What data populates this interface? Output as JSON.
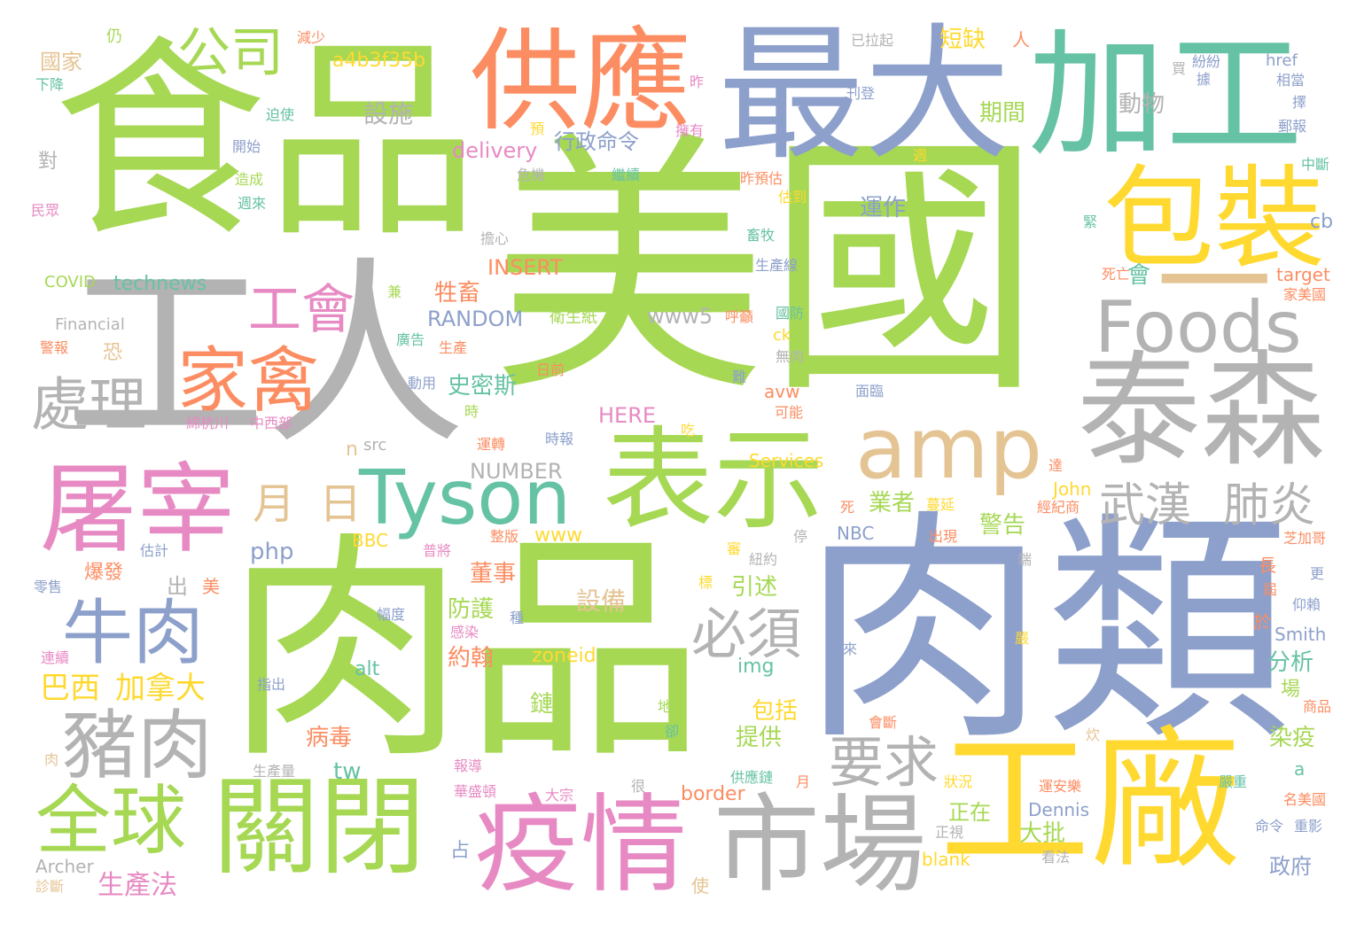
{
  "palette": {
    "green": "#A6D854",
    "grey": "#B3B3B3",
    "blue": "#8DA0CB",
    "orange": "#FC8D62",
    "teal": "#66C2A5",
    "yellow": "#FFD92F",
    "pink": "#E78AC3",
    "tan": "#E5C494"
  },
  "words": [
    {
      "text": "美國",
      "color": "#A6D854"
    },
    {
      "text": "食品",
      "color": "#A6D854"
    },
    {
      "text": "工人",
      "color": "#B3B3B3"
    },
    {
      "text": "肉品",
      "color": "#A6D854"
    },
    {
      "text": "肉類",
      "color": "#8DA0CB"
    },
    {
      "text": "最大",
      "color": "#8DA0CB"
    },
    {
      "text": "加工",
      "color": "#66C2A5"
    },
    {
      "text": "供應",
      "color": "#FC8D62"
    },
    {
      "text": "包裝",
      "color": "#FFD92F"
    },
    {
      "text": "一",
      "color": "#E5C494"
    },
    {
      "text": "Foods",
      "color": "#B3B3B3"
    },
    {
      "text": "泰森",
      "color": "#B3B3B3"
    },
    {
      "text": "amp",
      "color": "#E5C494"
    },
    {
      "text": "表示",
      "color": "#A6D854"
    },
    {
      "text": "Tyson",
      "color": "#66C2A5"
    },
    {
      "text": "屠宰",
      "color": "#E78AC3"
    },
    {
      "text": "工廠",
      "color": "#FFD92F"
    },
    {
      "text": "市場",
      "color": "#B3B3B3"
    },
    {
      "text": "疫情",
      "color": "#E78AC3"
    },
    {
      "text": "關閉",
      "color": "#A6D854"
    },
    {
      "text": "全球",
      "color": "#A6D854"
    },
    {
      "text": "豬肉",
      "color": "#B3B3B3"
    },
    {
      "text": "牛肉",
      "color": "#8DA0CB"
    },
    {
      "text": "家禽",
      "color": "#FC8D62"
    },
    {
      "text": "處理",
      "color": "#B3B3B3"
    },
    {
      "text": "工會",
      "color": "#E78AC3"
    },
    {
      "text": "公司",
      "color": "#A6D854"
    },
    {
      "text": "武漢",
      "color": "#B3B3B3"
    },
    {
      "text": "肺炎",
      "color": "#B3B3B3"
    },
    {
      "text": "必須",
      "color": "#B3B3B3"
    },
    {
      "text": "要求",
      "color": "#B3B3B3"
    },
    {
      "text": "月",
      "color": "#E5C494"
    },
    {
      "text": "日",
      "color": "#E5C494"
    },
    {
      "text": "巴西",
      "color": "#FFD92F"
    },
    {
      "text": "加拿大",
      "color": "#FFD92F"
    },
    {
      "text": "生產法",
      "color": "#E78AC3"
    },
    {
      "text": "設施",
      "color": "#B3B3B3"
    },
    {
      "text": "設備",
      "color": "#E5C494"
    },
    {
      "text": "a4b3f35b",
      "color": "#FFD92F"
    },
    {
      "text": "行政命令",
      "color": "#8DA0CB"
    },
    {
      "text": "delivery",
      "color": "#E78AC3"
    },
    {
      "text": "INSERT",
      "color": "#FC8D62"
    },
    {
      "text": "RANDOM",
      "color": "#8DA0CB"
    },
    {
      "text": "牲畜",
      "color": "#FC8D62"
    },
    {
      "text": "史密斯",
      "color": "#66C2A5"
    },
    {
      "text": "HERE",
      "color": "#E78AC3"
    },
    {
      "text": "NUMBER",
      "color": "#B3B3B3"
    },
    {
      "text": "technews",
      "color": "#66C2A5"
    },
    {
      "text": "COVID",
      "color": "#A6D854"
    },
    {
      "text": "Financial",
      "color": "#B3B3B3"
    },
    {
      "text": "短缺",
      "color": "#FFD92F"
    },
    {
      "text": "期間",
      "color": "#A6D854"
    },
    {
      "text": "動物",
      "color": "#B3B3B3"
    },
    {
      "text": "運作",
      "color": "#8DA0CB"
    },
    {
      "text": "業者",
      "color": "#A6D854"
    },
    {
      "text": "警告",
      "color": "#A6D854"
    },
    {
      "text": "大批",
      "color": "#A6D854"
    },
    {
      "text": "正在",
      "color": "#A6D854"
    },
    {
      "text": "董事",
      "color": "#FC8D62"
    },
    {
      "text": "防護",
      "color": "#A6D854"
    },
    {
      "text": "約翰",
      "color": "#FC8D62"
    },
    {
      "text": "引述",
      "color": "#A6D854"
    },
    {
      "text": "包括",
      "color": "#FFD92F"
    },
    {
      "text": "提供",
      "color": "#A6D854"
    },
    {
      "text": "病毒",
      "color": "#FC8D62"
    },
    {
      "text": "分析",
      "color": "#66C2A5"
    },
    {
      "text": "染疫",
      "color": "#A6D854"
    },
    {
      "text": "政府",
      "color": "#8DA0CB"
    },
    {
      "text": "國家",
      "color": "#E5C494"
    },
    {
      "text": "www5",
      "color": "#B3B3B3"
    },
    {
      "text": "php",
      "color": "#8DA0CB"
    },
    {
      "text": "www",
      "color": "#FFD92F"
    },
    {
      "text": "zoneid",
      "color": "#FFD92F"
    },
    {
      "text": "img",
      "color": "#66C2A5"
    },
    {
      "text": "alt",
      "color": "#66C2A5"
    },
    {
      "text": "tw",
      "color": "#66C2A5"
    },
    {
      "text": "border",
      "color": "#FC8D62"
    },
    {
      "text": "blank",
      "color": "#FFD92F"
    },
    {
      "text": "Services",
      "color": "#FFD92F"
    },
    {
      "text": "avw",
      "color": "#FC8D62"
    },
    {
      "text": "cb",
      "color": "#8DA0CB"
    },
    {
      "text": "ck",
      "color": "#FFD92F"
    },
    {
      "text": "target",
      "color": "#FC8D62"
    },
    {
      "text": "href",
      "color": "#8DA0CB"
    },
    {
      "text": "John",
      "color": "#FFD92F"
    },
    {
      "text": "Smith",
      "color": "#8DA0CB"
    },
    {
      "text": "Dennis",
      "color": "#8DA0CB"
    },
    {
      "text": "Archer",
      "color": "#B3B3B3"
    },
    {
      "text": "NBC",
      "color": "#8DA0CB"
    },
    {
      "text": "BBC",
      "color": "#FFD92F"
    },
    {
      "text": "src",
      "color": "#B3B3B3"
    },
    {
      "text": "n",
      "color": "#E5C494"
    },
    {
      "text": "a",
      "color": "#66C2A5"
    },
    {
      "text": "出",
      "color": "#B3B3B3"
    },
    {
      "text": "美",
      "color": "#FC8D62"
    },
    {
      "text": "對",
      "color": "#B3B3B3"
    },
    {
      "text": "恐",
      "color": "#E5C494"
    },
    {
      "text": "占",
      "color": "#8DA0CB"
    },
    {
      "text": "鏈",
      "color": "#A6D854"
    },
    {
      "text": "會",
      "color": "#66C2A5"
    },
    {
      "text": "仍",
      "color": "#A6D854"
    },
    {
      "text": "人",
      "color": "#FC8D62"
    },
    {
      "text": "減少",
      "color": "#FC8D62"
    },
    {
      "text": "下降",
      "color": "#66C2A5"
    },
    {
      "text": "迫使",
      "color": "#66C2A5"
    },
    {
      "text": "開始",
      "color": "#8DA0CB"
    },
    {
      "text": "造成",
      "color": "#A6D854"
    },
    {
      "text": "週來",
      "color": "#66C2A5"
    },
    {
      "text": "民眾",
      "color": "#E78AC3"
    },
    {
      "text": "警報",
      "color": "#FC8D62"
    },
    {
      "text": "動用",
      "color": "#8DA0CB"
    },
    {
      "text": "綿杭川",
      "color": "#E78AC3"
    },
    {
      "text": "中西部",
      "color": "#E78AC3"
    },
    {
      "text": "爆發",
      "color": "#FC8D62"
    },
    {
      "text": "零售",
      "color": "#8DA0CB"
    },
    {
      "text": "估計",
      "color": "#8DA0CB"
    },
    {
      "text": "運轉",
      "color": "#FC8D62"
    },
    {
      "text": "時報",
      "color": "#8DA0CB"
    },
    {
      "text": "衛生紙",
      "color": "#A6D854"
    },
    {
      "text": "廣告",
      "color": "#66C2A5"
    },
    {
      "text": "生產",
      "color": "#FC8D62"
    },
    {
      "text": "日前",
      "color": "#FC8D62"
    },
    {
      "text": "危機",
      "color": "#B3B3B3"
    },
    {
      "text": "繼續",
      "color": "#66C2A5"
    },
    {
      "text": "擔心",
      "color": "#B3B3B3"
    },
    {
      "text": "已拉起",
      "color": "#B3B3B3"
    },
    {
      "text": "刊登",
      "color": "#8DA0CB"
    },
    {
      "text": "擁有",
      "color": "#E78AC3"
    },
    {
      "text": "畜牧",
      "color": "#66C2A5"
    },
    {
      "text": "生產線",
      "color": "#8DA0CB"
    },
    {
      "text": "呼籲",
      "color": "#FC8D62"
    },
    {
      "text": "國防",
      "color": "#66C2A5"
    },
    {
      "text": "無肉",
      "color": "#B3B3B3"
    },
    {
      "text": "面臨",
      "color": "#8DA0CB"
    },
    {
      "text": "可能",
      "color": "#FC8D62"
    },
    {
      "text": "昨預估",
      "color": "#FC8D62"
    },
    {
      "text": "估到",
      "color": "#FFD92F"
    },
    {
      "text": "死亡",
      "color": "#FC8D62"
    },
    {
      "text": "緊",
      "color": "#66C2A5"
    },
    {
      "text": "紛紛",
      "color": "#8DA0CB"
    },
    {
      "text": "相當",
      "color": "#8DA0CB"
    },
    {
      "text": "郵報",
      "color": "#8DA0CB"
    },
    {
      "text": "中斷",
      "color": "#66C2A5"
    },
    {
      "text": "家美國",
      "color": "#FC8D62"
    },
    {
      "text": "芝加哥",
      "color": "#FC8D62"
    },
    {
      "text": "仰賴",
      "color": "#8DA0CB"
    },
    {
      "text": "商品",
      "color": "#FC8D62"
    },
    {
      "text": "名美國",
      "color": "#FC8D62"
    },
    {
      "text": "命令",
      "color": "#8DA0CB"
    },
    {
      "text": "重影",
      "color": "#8DA0CB"
    },
    {
      "text": "嚴重",
      "color": "#66C2A5"
    },
    {
      "text": "運安樂",
      "color": "#FC8D62"
    },
    {
      "text": "經紀商",
      "color": "#FC8D62"
    },
    {
      "text": "看法",
      "color": "#B3B3B3"
    },
    {
      "text": "蔓延",
      "color": "#FFD92F"
    },
    {
      "text": "出現",
      "color": "#FC8D62"
    },
    {
      "text": "普將",
      "color": "#E78AC3"
    },
    {
      "text": "整版",
      "color": "#FC8D62"
    },
    {
      "text": "紐約",
      "color": "#B3B3B3"
    },
    {
      "text": "幅度",
      "color": "#8DA0CB"
    },
    {
      "text": "感染",
      "color": "#E78AC3"
    },
    {
      "text": "連續",
      "color": "#E78AC3"
    },
    {
      "text": "指出",
      "color": "#8DA0CB"
    },
    {
      "text": "以來",
      "color": "#8DA0CB"
    },
    {
      "text": "地區",
      "color": "#A6D854"
    },
    {
      "text": "會斷",
      "color": "#FC8D62"
    },
    {
      "text": "報導",
      "color": "#E78AC3"
    },
    {
      "text": "生產量",
      "color": "#B3B3B3"
    },
    {
      "text": "華盛頓",
      "color": "#E78AC3"
    },
    {
      "text": "大宗",
      "color": "#E78AC3"
    },
    {
      "text": "供應鏈",
      "color": "#66C2A5"
    },
    {
      "text": "狀況",
      "color": "#FFD92F"
    },
    {
      "text": "正視",
      "color": "#B3B3B3"
    },
    {
      "text": "診斷",
      "color": "#E5C494"
    },
    {
      "text": "使",
      "color": "#E5C494"
    },
    {
      "text": "很",
      "color": "#B3B3B3"
    },
    {
      "text": "月",
      "color": "#FC8D62"
    },
    {
      "text": "卻",
      "color": "#66C2A5"
    },
    {
      "text": "炊",
      "color": "#E5C494"
    },
    {
      "text": "長",
      "color": "#FC8D62"
    },
    {
      "text": "屆",
      "color": "#FC8D62"
    },
    {
      "text": "更",
      "color": "#8DA0CB"
    },
    {
      "text": "場",
      "color": "#A6D854"
    },
    {
      "text": "於",
      "color": "#FC8D62"
    },
    {
      "text": "端",
      "color": "#B3B3B3"
    },
    {
      "text": "達",
      "color": "#FC8D62"
    },
    {
      "text": "死",
      "color": "#FC8D62"
    },
    {
      "text": "停",
      "color": "#B3B3B3"
    },
    {
      "text": "嚴",
      "color": "#FFD92F"
    },
    {
      "text": "審",
      "color": "#FFD92F"
    },
    {
      "text": "種",
      "color": "#8DA0CB"
    },
    {
      "text": "標",
      "color": "#FFD92F"
    },
    {
      "text": "吃",
      "color": "#FFD92F"
    },
    {
      "text": "難",
      "color": "#8DA0CB"
    },
    {
      "text": "時",
      "color": "#A6D854"
    },
    {
      "text": "週",
      "color": "#FFD92F"
    },
    {
      "text": "兼",
      "color": "#A6D854"
    },
    {
      "text": "預",
      "color": "#FFD92F"
    },
    {
      "text": "昨",
      "color": "#E78AC3"
    },
    {
      "text": "買",
      "color": "#B3B3B3"
    },
    {
      "text": "據",
      "color": "#8DA0CB"
    },
    {
      "text": "擇",
      "color": "#8DA0CB"
    },
    {
      "text": "肉",
      "color": "#E5C494"
    }
  ]
}
